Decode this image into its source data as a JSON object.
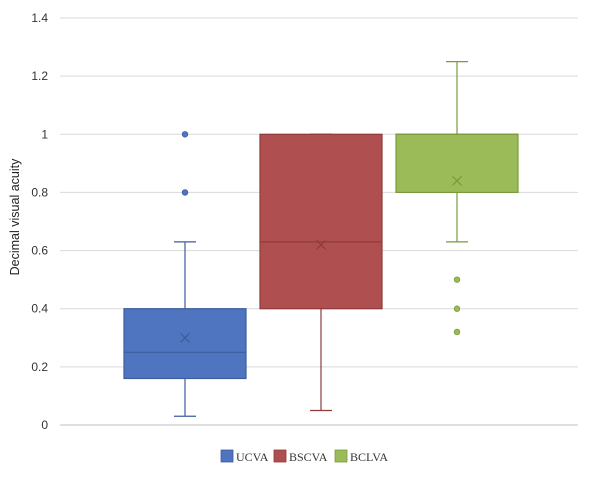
{
  "chart_data": {
    "type": "box",
    "title": "",
    "xlabel": "",
    "ylabel": "Decimal visual acuity",
    "ylim": [
      0,
      1.4
    ],
    "yticks": [
      0,
      0.2,
      0.4,
      0.6,
      0.8,
      1,
      1.2,
      1.4
    ],
    "ytick_labels": [
      "0",
      "0.2",
      "0.4",
      "0.6",
      "0.8",
      "1",
      "1.2",
      "1.4"
    ],
    "grid": true,
    "legend_position": "bottom",
    "series": [
      {
        "name": "UCVA",
        "color": "#4f74c0",
        "edge": "#3d5d9e",
        "whisker_low": 0.03,
        "q1": 0.16,
        "median": 0.25,
        "q3": 0.4,
        "whisker_high": 0.63,
        "mean": 0.3,
        "outliers": [
          0.8,
          1.0
        ]
      },
      {
        "name": "BSCVA",
        "color": "#b04f4f",
        "edge": "#8e3b3b",
        "whisker_low": 0.05,
        "q1": 0.4,
        "median": 0.63,
        "q3": 1.0,
        "whisker_high": 1.0,
        "mean": 0.62,
        "outliers": []
      },
      {
        "name": "BCLVA",
        "color": "#9bbb59",
        "edge": "#7a9a3e",
        "whisker_low": 0.63,
        "q1": 0.8,
        "median": 1.0,
        "q3": 1.0,
        "whisker_high": 1.25,
        "mean": 0.84,
        "outliers": [
          0.32,
          0.4,
          0.5
        ]
      }
    ]
  }
}
